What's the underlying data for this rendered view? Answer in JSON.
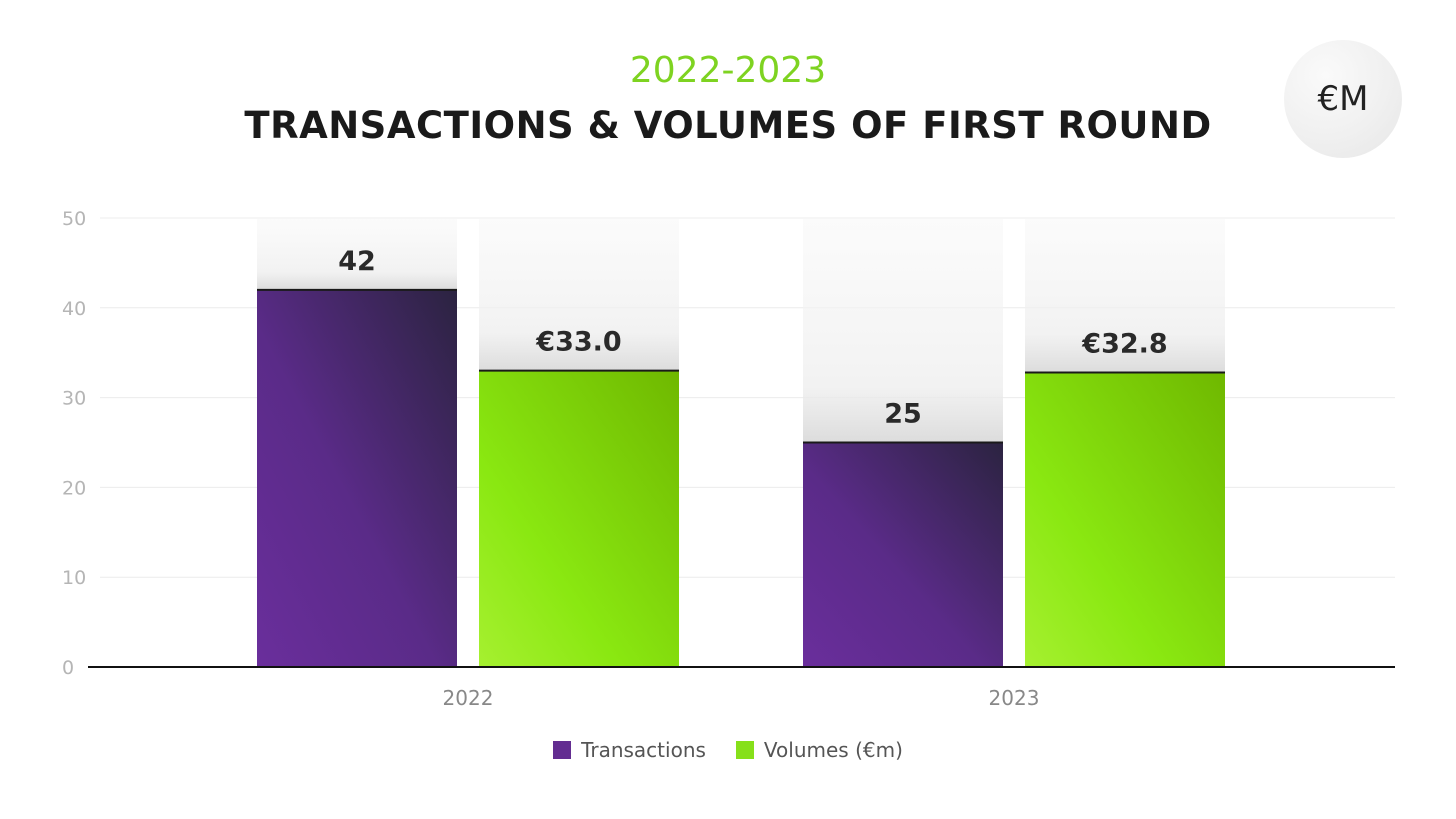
{
  "header": {
    "subtitle": "2022-2023",
    "title": "TRANSACTIONS & VOLUMES OF FIRST ROUND",
    "badge": "€M"
  },
  "colors": {
    "subtitle": "#7ed321",
    "transactions": "#632d91",
    "volumes": "#86e01a"
  },
  "chart_data": {
    "type": "bar",
    "categories": [
      "2022",
      "2023"
    ],
    "series": [
      {
        "name": "Transactions",
        "values": [
          42,
          25
        ],
        "labels": [
          "42",
          "25"
        ],
        "color": "#632d91"
      },
      {
        "name": "Volumes (€m)",
        "values": [
          33.0,
          32.8
        ],
        "labels": [
          "€33.0",
          "€32.8"
        ],
        "color": "#86e01a"
      }
    ],
    "title": "TRANSACTIONS & VOLUMES OF FIRST ROUND",
    "subtitle": "2022-2023",
    "ylim": [
      0,
      50
    ],
    "yticks": [
      0,
      10,
      20,
      30,
      40,
      50
    ],
    "grid": true,
    "legend": "bottom-center"
  }
}
